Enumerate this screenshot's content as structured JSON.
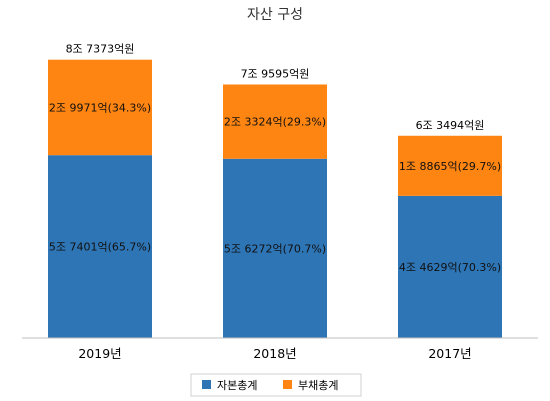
{
  "chart_data": {
    "type": "bar",
    "stacked": true,
    "title": "자산 구성",
    "categories": [
      "2019년",
      "2018년",
      "2017년"
    ],
    "totals": [
      87373,
      79595,
      63494
    ],
    "total_labels": [
      "8조 7373억원",
      "7조 9595억원",
      "6조 3494억원"
    ],
    "series": [
      {
        "name": "자본총계",
        "color": "#2E75B6",
        "values": [
          57401,
          56272,
          44629
        ],
        "labels": [
          "5조 7401억(65.7%)",
          "5조 6272억(70.7%)",
          "4조 4629억(70.3%)"
        ]
      },
      {
        "name": "부채총계",
        "color": "#FF8512",
        "values": [
          29971,
          23324,
          18865
        ],
        "labels": [
          "2조 9971억(34.3%)",
          "2조 3324억(29.3%)",
          "1조 8865억(29.7%)"
        ]
      }
    ],
    "ylim": [
      0,
      100000
    ],
    "grid": false,
    "legend_position": "bottom"
  }
}
